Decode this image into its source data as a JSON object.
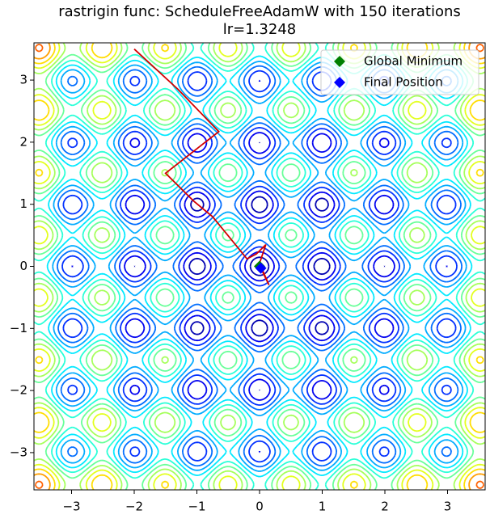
{
  "chart_data": {
    "type": "contour",
    "title": "rastrigin func: ScheduleFreeAdamW with 150 iterations",
    "subtitle": "lr=1.3248",
    "xlim": [
      -3.6,
      3.6
    ],
    "ylim": [
      -3.6,
      3.6
    ],
    "xticks": [
      {
        "value": -3,
        "label": "−3"
      },
      {
        "value": -2,
        "label": "−2"
      },
      {
        "value": -1,
        "label": "−1"
      },
      0,
      1,
      2,
      3
    ],
    "yticks": [
      {
        "value": -3,
        "label": "−3"
      },
      {
        "value": -2,
        "label": "−2"
      },
      {
        "value": -1,
        "label": "−1"
      },
      0,
      1,
      2,
      3
    ],
    "path": {
      "color": "#d40000",
      "x": [
        -2.0,
        -1.3,
        -0.65,
        -1.5,
        -1.05,
        -0.75,
        -0.45,
        -0.2,
        -0.05,
        0.1,
        0.0,
        0.15,
        0.02
      ],
      "y": [
        3.5,
        2.85,
        2.17,
        1.5,
        1.05,
        0.8,
        0.43,
        0.12,
        0.2,
        0.35,
        0.05,
        -0.3,
        -0.03
      ]
    },
    "series": [
      {
        "name": "Global Minimum",
        "color": "green",
        "x": [
          0
        ],
        "y": [
          0
        ]
      },
      {
        "name": "Final Position",
        "color": "blue",
        "x": [
          0.02
        ],
        "y": [
          -0.03
        ]
      }
    ],
    "legend": "upper right"
  }
}
